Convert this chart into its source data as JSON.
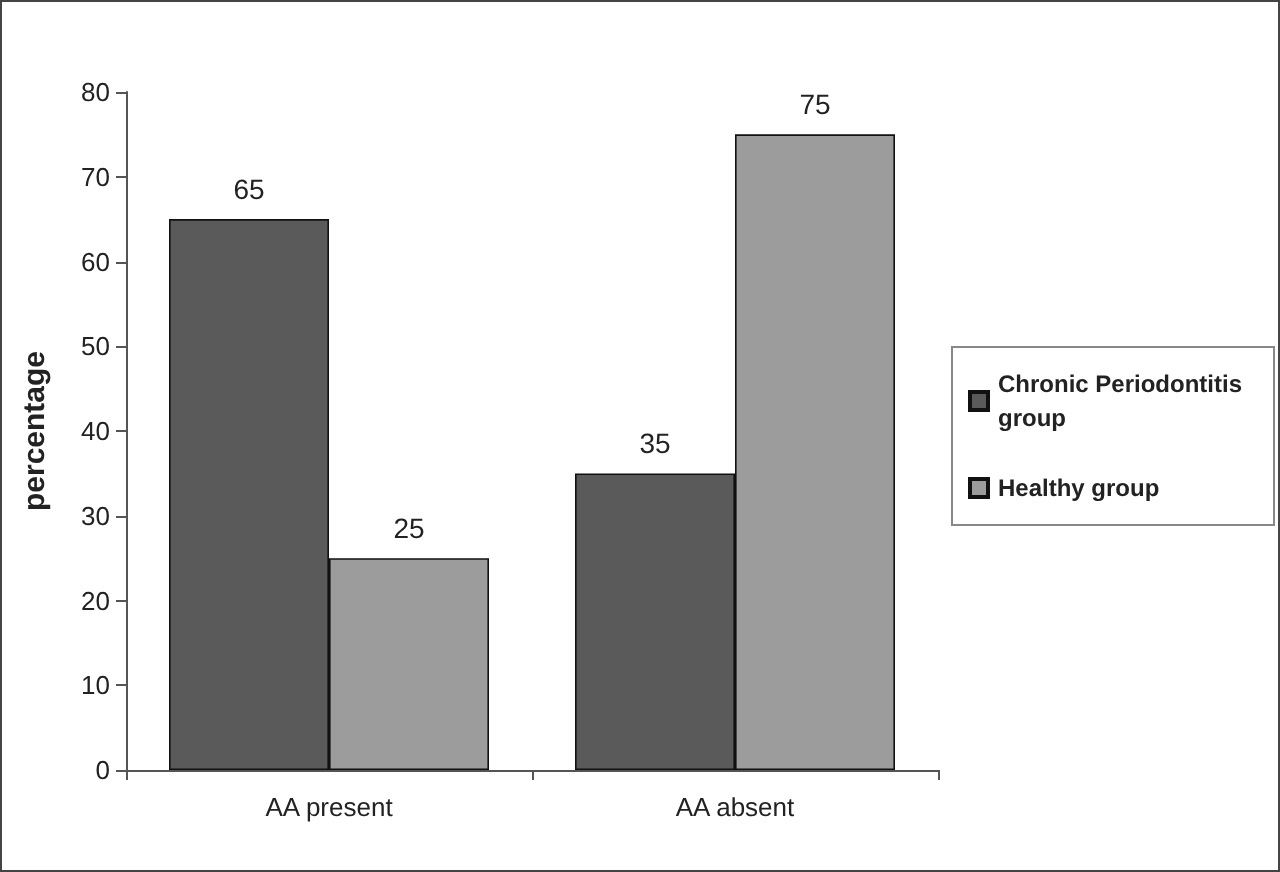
{
  "chart_data": {
    "type": "bar",
    "ylabel": "percentage",
    "categories": [
      "AA present",
      "AA absent"
    ],
    "series": [
      {
        "name": "Chronic Periodontitis group",
        "color": "#5a5a5a",
        "values": [
          65,
          35
        ]
      },
      {
        "name": "Healthy group",
        "color": "#9c9c9c",
        "values": [
          25,
          75
        ]
      }
    ],
    "ylim": [
      0,
      80
    ],
    "yticks": [
      0,
      10,
      20,
      30,
      40,
      50,
      60,
      70,
      80
    ],
    "data_labels": true,
    "grid": false,
    "legend": "right"
  }
}
